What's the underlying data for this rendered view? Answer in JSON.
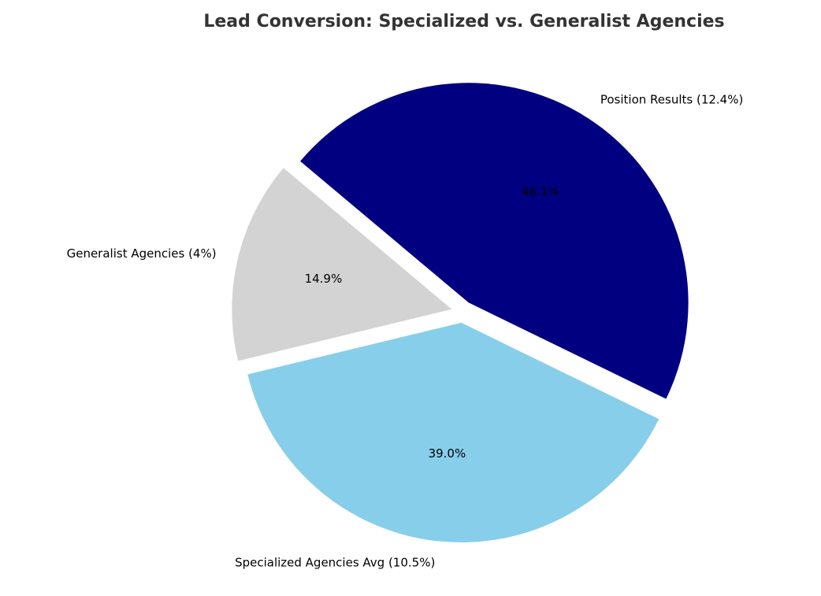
{
  "chart_data": {
    "type": "pie",
    "title": "Lead Conversion: Specialized vs. Generalist Agencies",
    "categories": [
      "Position Results (12.4%)",
      "Generalist Agencies (4%)",
      "Specialized Agencies Avg (10.5%)"
    ],
    "values": [
      46.1,
      14.9,
      39.0
    ],
    "value_labels": [
      "46.1%",
      "14.9%",
      "39.0%"
    ],
    "colors": [
      "#000080",
      "#d3d3d3",
      "#87ceeb"
    ]
  }
}
